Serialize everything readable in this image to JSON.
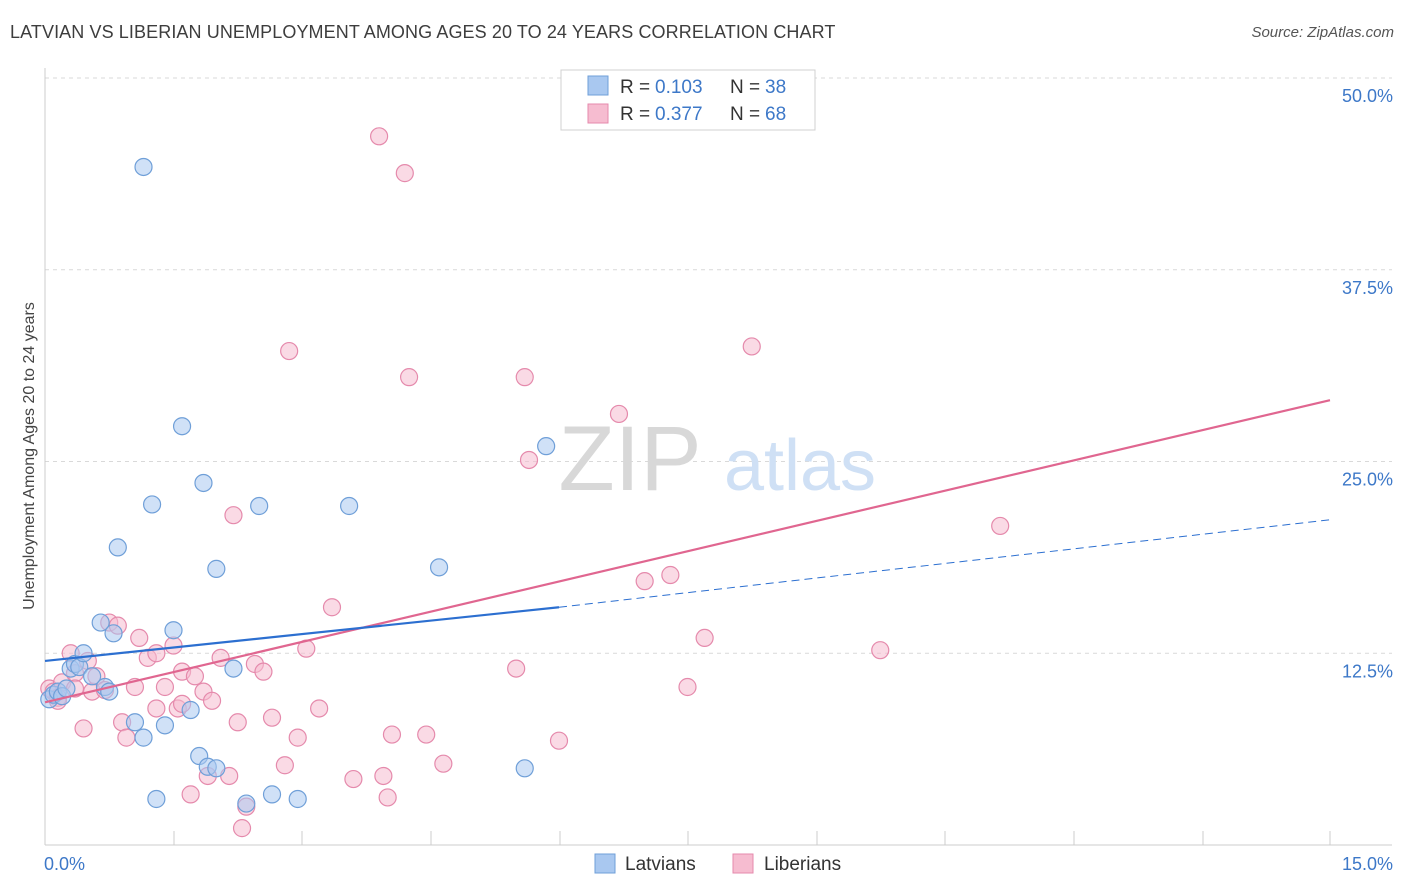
{
  "title": "LATVIAN VS LIBERIAN UNEMPLOYMENT AMONG AGES 20 TO 24 YEARS CORRELATION CHART",
  "source": "Source: ZipAtlas.com",
  "watermark": {
    "zip": "ZIP",
    "atlas": "atlas"
  },
  "colors": {
    "latvian_fill": "#a9c8f0",
    "latvian_stroke": "#6f9fd8",
    "latvian_line": "#2c6fd0",
    "liberian_fill": "#f6bcd0",
    "liberian_stroke": "#e58aac",
    "liberian_line": "#e06690",
    "grid": "#d9d9d9",
    "axis_label": "#3d78c8"
  },
  "legend_top": [
    {
      "r_label": "R =",
      "r_value": "0.103",
      "n_label": "N =",
      "n_value": "38"
    },
    {
      "r_label": "R =",
      "r_value": "0.377",
      "n_label": "N =",
      "n_value": "68"
    }
  ],
  "chart_data": {
    "type": "scatter",
    "title": "LATVIAN VS LIBERIAN UNEMPLOYMENT AMONG AGES 20 TO 24 YEARS CORRELATION CHART",
    "xlabel": "",
    "ylabel": "Unemployment Among Ages 20 to 24 years",
    "xlim": [
      0,
      15
    ],
    "ylim": [
      0,
      50
    ],
    "x_tick_labels": [
      "0.0%",
      "15.0%"
    ],
    "y_ticks": [
      12.5,
      25,
      37.5,
      50
    ],
    "y_tick_labels": [
      "12.5%",
      "25.0%",
      "37.5%",
      "50.0%"
    ],
    "legend": [
      "Latvians",
      "Liberians"
    ],
    "series": [
      {
        "name": "Latvians",
        "r": 0.103,
        "n": 38,
        "trend": {
          "x0": 0,
          "y0": 12.0,
          "x1": 6.0,
          "y1": 15.5,
          "dash_x1": 15,
          "dash_y1": 21.2
        },
        "points": [
          [
            0.05,
            9.5
          ],
          [
            0.1,
            9.8
          ],
          [
            0.15,
            10.0
          ],
          [
            0.2,
            9.7
          ],
          [
            0.25,
            10.2
          ],
          [
            0.3,
            11.5
          ],
          [
            0.35,
            11.8
          ],
          [
            0.4,
            11.6
          ],
          [
            0.45,
            12.5
          ],
          [
            0.55,
            11.0
          ],
          [
            0.65,
            14.5
          ],
          [
            0.7,
            10.3
          ],
          [
            0.75,
            10.0
          ],
          [
            0.8,
            13.8
          ],
          [
            0.85,
            19.4
          ],
          [
            1.05,
            8.0
          ],
          [
            1.15,
            7.0
          ],
          [
            1.15,
            44.2
          ],
          [
            1.25,
            22.2
          ],
          [
            1.4,
            7.8
          ],
          [
            1.5,
            14.0
          ],
          [
            1.6,
            27.3
          ],
          [
            1.7,
            8.8
          ],
          [
            1.8,
            5.8
          ],
          [
            1.85,
            23.6
          ],
          [
            1.9,
            5.1
          ],
          [
            2.0,
            5.0
          ],
          [
            2.0,
            18.0
          ],
          [
            2.2,
            11.5
          ],
          [
            2.35,
            2.7
          ],
          [
            2.5,
            22.1
          ],
          [
            2.65,
            3.3
          ],
          [
            2.95,
            3.0
          ],
          [
            3.55,
            22.1
          ],
          [
            4.6,
            18.1
          ],
          [
            5.6,
            5.0
          ],
          [
            5.85,
            26.0
          ],
          [
            1.3,
            3.0
          ]
        ]
      },
      {
        "name": "Liberians",
        "r": 0.377,
        "n": 68,
        "trend": {
          "x0": 0,
          "y0": 9.3,
          "x1": 15,
          "y1": 29.0
        },
        "points": [
          [
            0.05,
            10.2
          ],
          [
            0.1,
            10.0
          ],
          [
            0.15,
            9.6
          ],
          [
            0.2,
            10.6
          ],
          [
            0.3,
            12.5
          ],
          [
            0.35,
            11.2
          ],
          [
            0.45,
            7.6
          ],
          [
            0.5,
            12.0
          ],
          [
            0.55,
            10.0
          ],
          [
            0.6,
            11.0
          ],
          [
            0.7,
            10.1
          ],
          [
            0.75,
            14.5
          ],
          [
            0.85,
            14.3
          ],
          [
            0.9,
            8.0
          ],
          [
            0.95,
            7.0
          ],
          [
            1.05,
            10.3
          ],
          [
            1.1,
            13.5
          ],
          [
            1.2,
            12.2
          ],
          [
            1.3,
            12.5
          ],
          [
            1.3,
            8.9
          ],
          [
            1.4,
            10.3
          ],
          [
            1.5,
            13.0
          ],
          [
            1.55,
            8.9
          ],
          [
            1.6,
            11.3
          ],
          [
            1.7,
            3.3
          ],
          [
            1.75,
            11.0
          ],
          [
            1.85,
            10.0
          ],
          [
            1.9,
            4.5
          ],
          [
            1.95,
            9.4
          ],
          [
            2.05,
            12.2
          ],
          [
            2.15,
            4.5
          ],
          [
            2.2,
            21.5
          ],
          [
            2.25,
            8.0
          ],
          [
            2.3,
            1.1
          ],
          [
            2.35,
            2.5
          ],
          [
            2.45,
            11.8
          ],
          [
            2.55,
            11.3
          ],
          [
            2.65,
            8.3
          ],
          [
            2.8,
            5.2
          ],
          [
            2.85,
            32.2
          ],
          [
            2.95,
            7.0
          ],
          [
            3.05,
            12.8
          ],
          [
            3.2,
            8.9
          ],
          [
            3.35,
            15.5
          ],
          [
            3.6,
            4.3
          ],
          [
            3.9,
            46.2
          ],
          [
            3.95,
            4.5
          ],
          [
            4.0,
            3.1
          ],
          [
            4.05,
            7.2
          ],
          [
            4.2,
            43.8
          ],
          [
            4.25,
            30.5
          ],
          [
            4.45,
            7.2
          ],
          [
            4.65,
            5.3
          ],
          [
            5.5,
            11.5
          ],
          [
            5.6,
            30.5
          ],
          [
            5.65,
            25.1
          ],
          [
            6.0,
            6.8
          ],
          [
            6.7,
            28.1
          ],
          [
            7.0,
            17.2
          ],
          [
            7.3,
            17.6
          ],
          [
            7.5,
            10.3
          ],
          [
            7.7,
            13.5
          ],
          [
            8.25,
            32.5
          ],
          [
            9.75,
            12.7
          ],
          [
            11.15,
            20.8
          ],
          [
            0.15,
            9.4
          ],
          [
            0.35,
            10.2
          ],
          [
            1.6,
            9.2
          ]
        ]
      }
    ]
  }
}
